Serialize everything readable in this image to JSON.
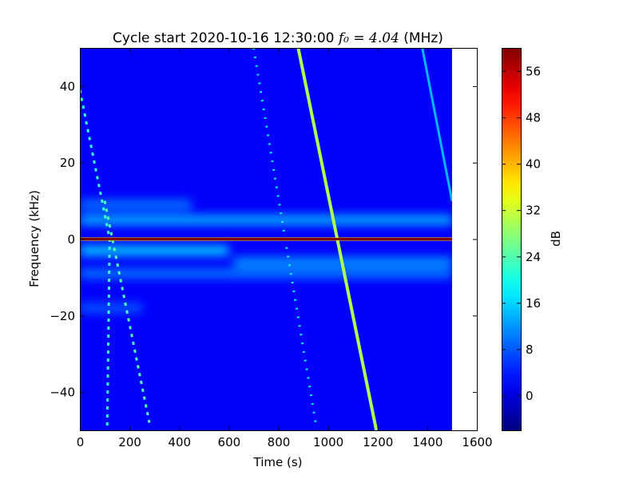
{
  "chart_data": {
    "type": "heatmap",
    "title_main": "Cycle start 2020-10-16 12:30:00 ",
    "title_math": "f₀ = 4.04",
    "title_unit": " (MHz)",
    "xlabel": "Time (s)",
    "ylabel": "Frequency (kHz)",
    "xlim": [
      0,
      1600
    ],
    "ylim": [
      -50,
      50
    ],
    "data_extent_x": [
      0,
      1500
    ],
    "x_ticks": [
      0,
      200,
      400,
      600,
      800,
      1000,
      1200,
      1400,
      1600
    ],
    "y_ticks": [
      -40,
      -20,
      0,
      20,
      40
    ],
    "x_tick_labels": [
      "0",
      "200",
      "400",
      "600",
      "800",
      "1000",
      "1200",
      "1400",
      "1600"
    ],
    "y_tick_labels": [
      "−40",
      "−20",
      "0",
      "20",
      "40"
    ],
    "colorbar": {
      "label": "dB",
      "range": [
        -6,
        60
      ],
      "colormap": "jet",
      "ticks": [
        0,
        8,
        16,
        24,
        32,
        40,
        48,
        56
      ],
      "tick_labels": [
        "0",
        "8",
        "16",
        "24",
        "32",
        "40",
        "48",
        "56"
      ]
    },
    "background_db": 2,
    "features": [
      {
        "name": "carrier",
        "kind": "horizontal",
        "freq_khz": 0,
        "t_range": [
          0,
          1500
        ],
        "db": 60
      },
      {
        "name": "upper sideband",
        "kind": "band",
        "freq_khz": 5,
        "t_range": [
          0,
          1500
        ],
        "db": 14
      },
      {
        "name": "upper sideband outer",
        "kind": "band",
        "freq_khz": 9,
        "t_range": [
          0,
          450
        ],
        "db": 10
      },
      {
        "name": "lower sideband",
        "kind": "band",
        "freq_khz": -3,
        "t_range": [
          0,
          600
        ],
        "db": 16
      },
      {
        "name": "lower sideband 2",
        "kind": "band",
        "freq_khz": -6,
        "t_range": [
          620,
          1500
        ],
        "db": 12
      },
      {
        "name": "lower sideband outer",
        "kind": "band",
        "freq_khz": -9,
        "t_range": [
          0,
          1500
        ],
        "db": 10
      },
      {
        "name": "lower wing",
        "kind": "band",
        "freq_khz": -18,
        "t_range": [
          0,
          250
        ],
        "db": 8
      },
      {
        "name": "sweep main",
        "kind": "diagonal",
        "points": [
          [
            880,
            50
          ],
          [
            1195,
            -50
          ]
        ],
        "db": 30
      },
      {
        "name": "sweep early",
        "kind": "diagonal",
        "points": [
          [
            0,
            39
          ],
          [
            120,
            0
          ],
          [
            110,
            -50
          ]
        ],
        "db": 22
      },
      {
        "name": "sweep dashed",
        "kind": "diagonal",
        "points": [
          [
            100,
            10
          ],
          [
            280,
            -48
          ]
        ],
        "db": 24
      },
      {
        "name": "sweep dotted upper",
        "kind": "diagonal",
        "points": [
          [
            700,
            50
          ],
          [
            950,
            -48
          ]
        ],
        "db": 18
      },
      {
        "name": "sweep late",
        "kind": "diagonal",
        "points": [
          [
            1380,
            50
          ],
          [
            1500,
            10
          ]
        ],
        "db": 14
      }
    ]
  }
}
